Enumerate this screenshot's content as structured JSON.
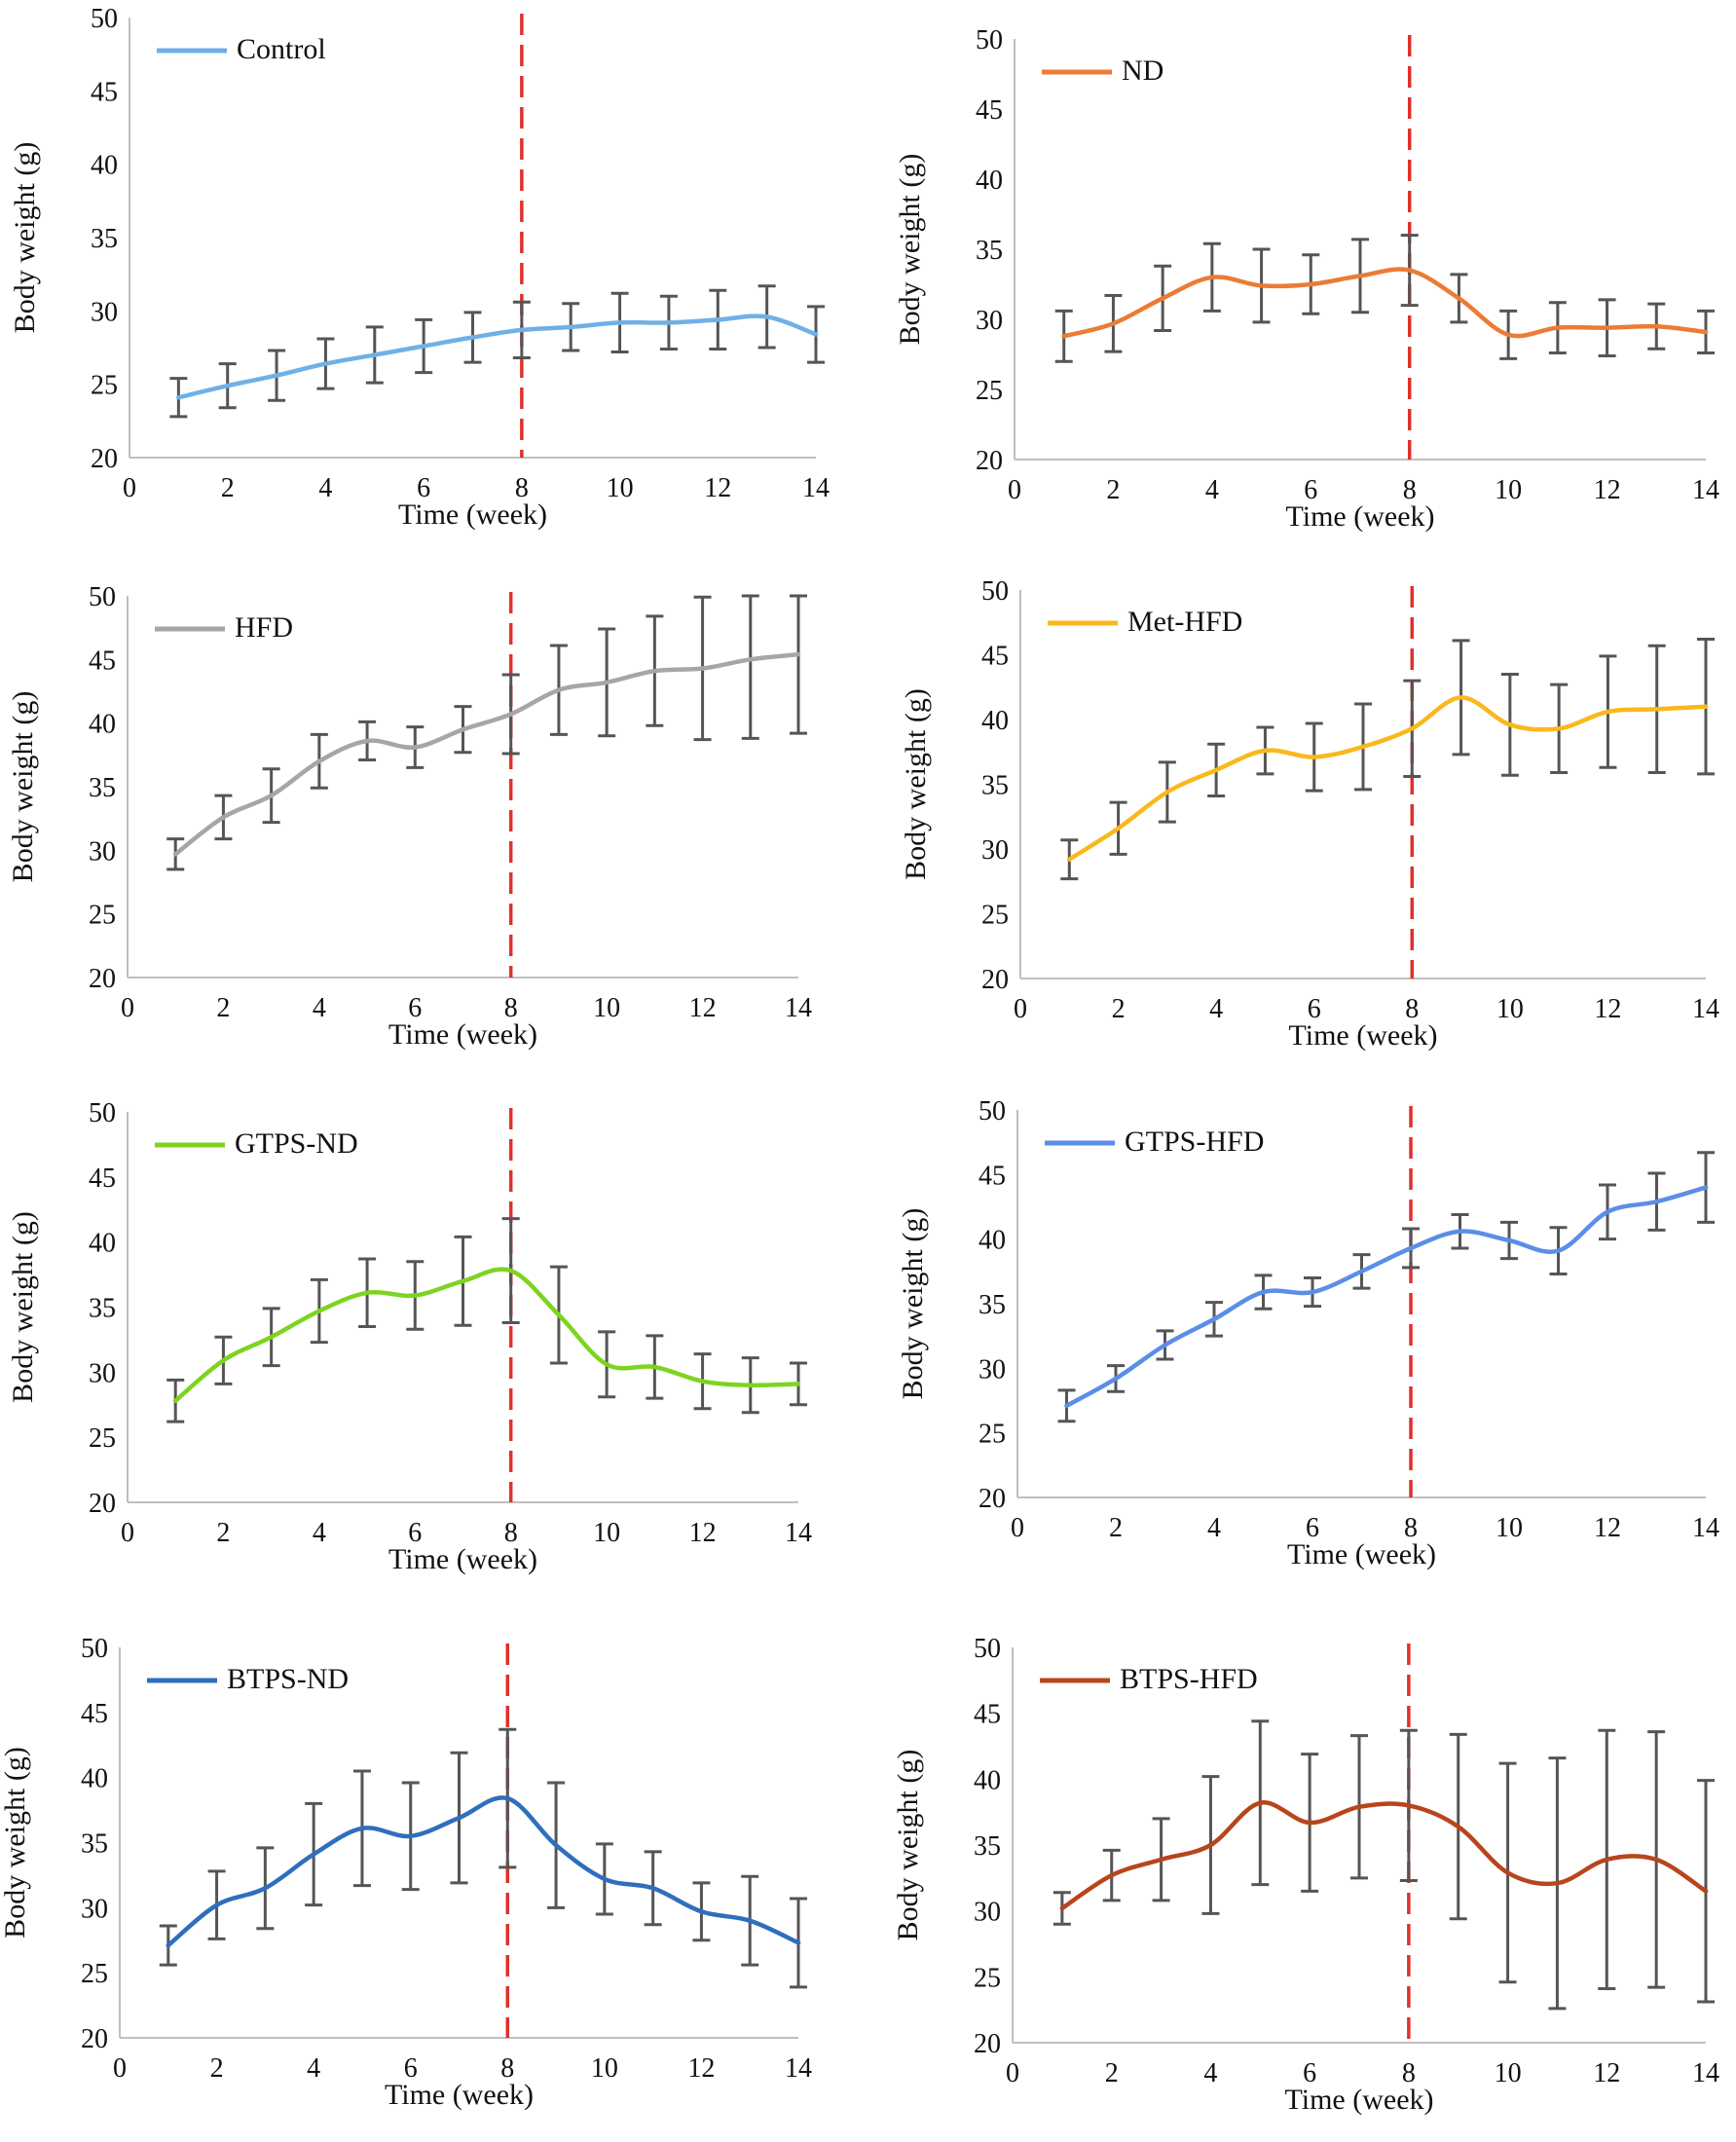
{
  "chart_data": [
    {
      "type": "line",
      "x": [
        1,
        2,
        3,
        4,
        5,
        6,
        7,
        8,
        9,
        10,
        11,
        12,
        13,
        14
      ],
      "series": [
        {
          "name": "Control",
          "color": "#6fb0e6",
          "values": [
            24.1,
            24.9,
            25.6,
            26.4,
            27.0,
            27.6,
            28.2,
            28.7,
            28.9,
            29.2,
            29.2,
            29.4,
            29.6,
            28.4
          ],
          "error": [
            1.3,
            1.5,
            1.7,
            1.7,
            1.9,
            1.8,
            1.7,
            1.9,
            1.6,
            2.0,
            1.8,
            2.0,
            2.1,
            1.9
          ]
        }
      ],
      "xlabel": "Time (week)",
      "ylabel": "Body weight (g)",
      "xlim": [
        0,
        14
      ],
      "ylim": [
        20,
        50
      ],
      "xticks": [
        0,
        2,
        4,
        6,
        8,
        10,
        12,
        14
      ],
      "yticks": [
        20,
        25,
        30,
        35,
        40,
        45,
        50
      ],
      "vline": {
        "x": 8,
        "color": "#e0302a",
        "style": "dashed"
      },
      "legend": "top-left",
      "grid": false
    },
    {
      "type": "line",
      "x": [
        1,
        2,
        3,
        4,
        5,
        6,
        7,
        8,
        9,
        10,
        11,
        12,
        13,
        14
      ],
      "series": [
        {
          "name": "ND",
          "color": "#ec7b34",
          "values": [
            28.8,
            29.7,
            31.5,
            33.0,
            32.4,
            32.5,
            33.1,
            33.5,
            31.5,
            28.9,
            29.4,
            29.4,
            29.5,
            29.1
          ],
          "error": [
            1.8,
            2.0,
            2.3,
            2.4,
            2.6,
            2.1,
            2.6,
            2.5,
            1.7,
            1.7,
            1.8,
            2.0,
            1.6,
            1.5
          ]
        }
      ],
      "xlabel": "Time (week)",
      "ylabel": "Body weight (g)",
      "xlim": [
        0,
        14
      ],
      "ylim": [
        20,
        50
      ],
      "xticks": [
        0,
        2,
        4,
        6,
        8,
        10,
        12,
        14
      ],
      "yticks": [
        20,
        25,
        30,
        35,
        40,
        45,
        50
      ],
      "vline": {
        "x": 8,
        "color": "#e0302a",
        "style": "dashed"
      },
      "legend": "top-left",
      "grid": false
    },
    {
      "type": "line",
      "x": [
        1,
        2,
        3,
        4,
        5,
        6,
        7,
        8,
        9,
        10,
        11,
        12,
        13,
        14
      ],
      "series": [
        {
          "name": "HFD",
          "color": "#a6a6a6",
          "values": [
            29.7,
            32.6,
            34.3,
            37.0,
            38.6,
            38.1,
            39.5,
            40.7,
            42.6,
            43.2,
            44.1,
            44.3,
            45.0,
            45.4
          ],
          "error": [
            1.2,
            1.7,
            2.1,
            2.1,
            1.5,
            1.6,
            1.8,
            3.1,
            3.5,
            4.2,
            4.3,
            5.6,
            6.2,
            6.2
          ]
        }
      ],
      "xlabel": "Time (week)",
      "ylabel": "Body weight (g)",
      "xlim": [
        0,
        14
      ],
      "ylim": [
        20,
        50
      ],
      "xticks": [
        0,
        2,
        4,
        6,
        8,
        10,
        12,
        14
      ],
      "yticks": [
        20,
        25,
        30,
        35,
        40,
        45,
        50
      ],
      "vline": {
        "x": 8,
        "color": "#e0302a",
        "style": "dashed"
      },
      "legend": "top-left",
      "grid": false
    },
    {
      "type": "line",
      "x": [
        1,
        2,
        3,
        4,
        5,
        6,
        7,
        8,
        9,
        10,
        11,
        12,
        13,
        14
      ],
      "series": [
        {
          "name": "Met-HFD",
          "color": "#f9b81c",
          "values": [
            29.2,
            31.6,
            34.4,
            36.1,
            37.6,
            37.1,
            37.9,
            39.3,
            41.7,
            39.6,
            39.3,
            40.6,
            40.8,
            41.0
          ],
          "error": [
            1.5,
            2.0,
            2.3,
            2.0,
            1.8,
            2.6,
            3.3,
            3.7,
            4.4,
            3.9,
            3.4,
            4.3,
            4.9,
            5.2
          ]
        }
      ],
      "xlabel": "Time (week)",
      "ylabel": "Body weight (g)",
      "xlim": [
        0,
        14
      ],
      "ylim": [
        20,
        50
      ],
      "xticks": [
        0,
        2,
        4,
        6,
        8,
        10,
        12,
        14
      ],
      "yticks": [
        20,
        25,
        30,
        35,
        40,
        45,
        50
      ],
      "vline": {
        "x": 8,
        "color": "#e0302a",
        "style": "dashed"
      },
      "legend": "top-left",
      "grid": false
    },
    {
      "type": "line",
      "x": [
        1,
        2,
        3,
        4,
        5,
        6,
        7,
        8,
        9,
        10,
        11,
        12,
        13,
        14
      ],
      "series": [
        {
          "name": "GTPS-ND",
          "color": "#7ed321",
          "values": [
            27.8,
            30.9,
            32.7,
            34.7,
            36.1,
            35.9,
            37.0,
            37.8,
            34.4,
            30.6,
            30.4,
            29.3,
            29.0,
            29.1
          ],
          "error": [
            1.6,
            1.8,
            2.2,
            2.4,
            2.6,
            2.6,
            3.4,
            4.0,
            3.7,
            2.5,
            2.4,
            2.1,
            2.1,
            1.6
          ]
        }
      ],
      "xlabel": "Time (week)",
      "ylabel": "Body weight (g)",
      "xlim": [
        0,
        14
      ],
      "ylim": [
        20,
        50
      ],
      "xticks": [
        0,
        2,
        4,
        6,
        8,
        10,
        12,
        14
      ],
      "yticks": [
        20,
        25,
        30,
        35,
        40,
        45,
        50
      ],
      "vline": {
        "x": 8,
        "color": "#e0302a",
        "style": "dashed"
      },
      "legend": "top-left",
      "grid": false
    },
    {
      "type": "line",
      "x": [
        1,
        2,
        3,
        4,
        5,
        6,
        7,
        8,
        9,
        10,
        11,
        12,
        13,
        14
      ],
      "series": [
        {
          "name": "GTPS-HFD",
          "color": "#5b8ee6",
          "values": [
            27.1,
            29.2,
            31.8,
            33.8,
            35.9,
            35.9,
            37.5,
            39.3,
            40.6,
            39.9,
            39.1,
            42.1,
            42.9,
            44.0
          ],
          "error": [
            1.2,
            1.0,
            1.1,
            1.3,
            1.3,
            1.1,
            1.3,
            1.5,
            1.3,
            1.4,
            1.8,
            2.1,
            2.2,
            2.7
          ]
        }
      ],
      "xlabel": "Time (week)",
      "ylabel": "Body weight (g)",
      "xlim": [
        0,
        14
      ],
      "ylim": [
        20,
        50
      ],
      "xticks": [
        0,
        2,
        4,
        6,
        8,
        10,
        12,
        14
      ],
      "yticks": [
        20,
        25,
        30,
        35,
        40,
        45,
        50
      ],
      "vline": {
        "x": 8,
        "color": "#e0302a",
        "style": "dashed"
      },
      "legend": "top-left",
      "grid": false
    },
    {
      "type": "line",
      "x": [
        1,
        2,
        3,
        4,
        5,
        6,
        7,
        8,
        9,
        10,
        11,
        12,
        13,
        14
      ],
      "series": [
        {
          "name": "BTPS-ND",
          "color": "#2f6ebe",
          "values": [
            27.1,
            30.2,
            31.5,
            34.1,
            36.1,
            35.5,
            36.9,
            38.4,
            34.8,
            32.2,
            31.5,
            29.7,
            29.0,
            27.3
          ],
          "error": [
            1.5,
            2.6,
            3.1,
            3.9,
            4.4,
            4.1,
            5.0,
            5.3,
            4.8,
            2.7,
            2.8,
            2.2,
            3.4,
            3.4
          ]
        }
      ],
      "xlabel": "Time (week)",
      "ylabel": "Body weight (g)",
      "xlim": [
        0,
        14
      ],
      "ylim": [
        20,
        50
      ],
      "xticks": [
        0,
        2,
        4,
        6,
        8,
        10,
        12,
        14
      ],
      "yticks": [
        20,
        25,
        30,
        35,
        40,
        45,
        50
      ],
      "vline": {
        "x": 8,
        "color": "#e0302a",
        "style": "dashed"
      },
      "legend": "top-left",
      "grid": false
    },
    {
      "type": "line",
      "x": [
        1,
        2,
        3,
        4,
        5,
        6,
        7,
        8,
        9,
        10,
        11,
        12,
        13,
        14
      ],
      "series": [
        {
          "name": "BTPS-HFD",
          "color": "#b8451c",
          "values": [
            30.2,
            32.7,
            33.9,
            35.0,
            38.2,
            36.7,
            37.9,
            38.0,
            36.4,
            32.9,
            32.1,
            33.9,
            33.9,
            31.5
          ],
          "error": [
            1.2,
            1.9,
            3.1,
            5.2,
            6.2,
            5.2,
            5.4,
            5.7,
            7.0,
            8.3,
            9.5,
            9.8,
            9.7,
            8.4
          ]
        }
      ],
      "xlabel": "Time (week)",
      "ylabel": "Body weight (g)",
      "xlim": [
        0,
        14
      ],
      "ylim": [
        20,
        50
      ],
      "xticks": [
        0,
        2,
        4,
        6,
        8,
        10,
        12,
        14
      ],
      "yticks": [
        20,
        25,
        30,
        35,
        40,
        45,
        50
      ],
      "vline": {
        "x": 8,
        "color": "#e0302a",
        "style": "dashed"
      },
      "legend": "top-left",
      "grid": false
    }
  ]
}
